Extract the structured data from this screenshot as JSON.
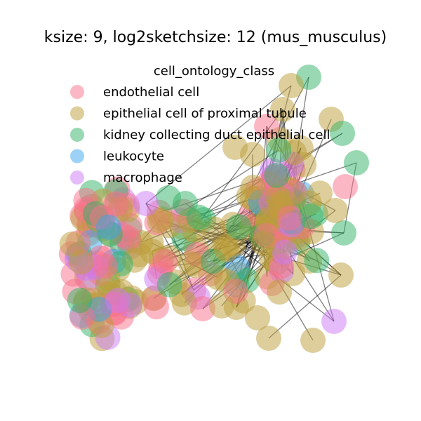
{
  "chart_data": {
    "type": "network",
    "title": "ksize: 9, log2sketchsize: 12 (mus_musculus)",
    "legend": {
      "title": "cell_ontology_class",
      "placement": "top-left",
      "entries": [
        {
          "name": "endothelial cell",
          "color": "#f77189"
        },
        {
          "name": "epithelial cell of proximal tubule",
          "color": "#bb9d3a"
        },
        {
          "name": "kidney collecting duct epithelial cell",
          "color": "#32b166"
        },
        {
          "name": "leukocyte",
          "color": "#3ba3ec"
        },
        {
          "name": "macrophage",
          "color": "#cc7af4"
        }
      ]
    },
    "node_alpha": 0.5,
    "edge_color": "#000000",
    "axes_visible": false,
    "grid": false
  }
}
